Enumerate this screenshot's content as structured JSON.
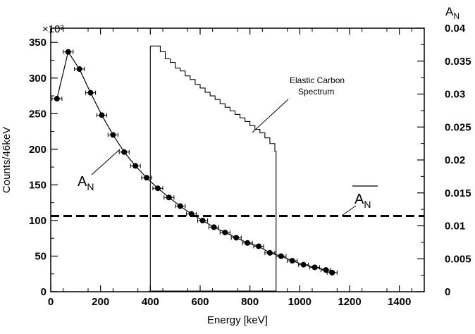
{
  "chart_data": {
    "type": "line",
    "xlabel": "Energy [keV]",
    "ylabel": "Counts/46keV",
    "y_multiplier": "×10³",
    "y2label": "A_N",
    "xlim": [
      0,
      1500
    ],
    "ylim": [
      0,
      370
    ],
    "y2lim": [
      0,
      0.04
    ],
    "x_ticks": [
      0,
      200,
      400,
      600,
      800,
      1000,
      1200,
      1400
    ],
    "y_ticks": [
      0,
      50,
      100,
      150,
      200,
      250,
      300,
      350
    ],
    "y2_ticks": [
      0,
      0.005,
      0.01,
      0.015,
      0.02,
      0.025,
      0.03,
      0.035,
      0.04
    ],
    "y2_tick_labels": [
      "0",
      "0.005",
      "0.01",
      "0.015",
      "0.02",
      "0.025",
      "0.03",
      "0.035",
      "0.04"
    ],
    "grid": false,
    "annotations": {
      "spectrum_label_line1": "Elastic Carbon",
      "spectrum_label_line2": "Spectrum",
      "an_label": "A",
      "an_label_sub": "N",
      "an_mean_label": "A",
      "an_mean_label_sub": "N",
      "y2_title": "A",
      "y2_title_sub": "N"
    },
    "series": [
      {
        "name": "A_N",
        "axis": "right",
        "style": "points with horizontal error bars and fit curve",
        "x": [
          25,
          70,
          115,
          160,
          205,
          250,
          295,
          340,
          385,
          430,
          475,
          520,
          565,
          610,
          655,
          700,
          745,
          790,
          835,
          880,
          925,
          970,
          1015,
          1060,
          1105,
          1130
        ],
        "y": [
          0.0293,
          0.0364,
          0.0338,
          0.0302,
          0.0268,
          0.0238,
          0.0212,
          0.0191,
          0.0173,
          0.0157,
          0.0143,
          0.013,
          0.0118,
          0.0108,
          0.0098,
          0.009,
          0.0082,
          0.0074,
          0.0069,
          0.0059,
          0.0054,
          0.0047,
          0.0041,
          0.0037,
          0.0033,
          0.0029
        ],
        "x_error": 20
      },
      {
        "name": "Elastic Carbon Spectrum",
        "axis": "left",
        "style": "step histogram",
        "x": [
          395,
          400,
          420,
          440,
          460,
          480,
          500,
          520,
          540,
          560,
          580,
          600,
          620,
          640,
          660,
          680,
          700,
          720,
          740,
          760,
          780,
          800,
          820,
          840,
          860,
          880,
          900,
          905
        ],
        "y": [
          0,
          345,
          345,
          337,
          327,
          322,
          314,
          310,
          303,
          298,
          291,
          286,
          280,
          275,
          270,
          264,
          259,
          254,
          249,
          244,
          239,
          233,
          228,
          223,
          216,
          208,
          197,
          0
        ]
      },
      {
        "name": "mean A_N",
        "axis": "right",
        "style": "dashed horizontal line",
        "x": [
          0,
          1500
        ],
        "y": [
          0.0115,
          0.0115
        ]
      }
    ]
  }
}
